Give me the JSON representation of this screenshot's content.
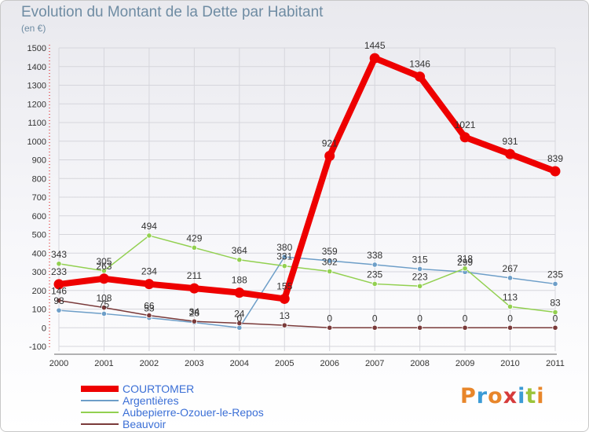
{
  "header": {
    "title": "Evolution du Montant de la Dette par Habitant",
    "subtitle": "(en €)"
  },
  "logo": {
    "text": "Proxiti",
    "colors": [
      "#e8862a",
      "#3b9bd6",
      "#e8862a",
      "#d63b3b",
      "#3b9bd6",
      "#9bc43b",
      "#e8862a"
    ]
  },
  "chart_data": {
    "type": "line",
    "title": "Evolution du Montant de la Dette par Habitant",
    "subtitle": "(en €)",
    "x": [
      "2000",
      "2001",
      "2002",
      "2003",
      "2004",
      "2005",
      "2006",
      "2007",
      "2008",
      "2009",
      "2010",
      "2011"
    ],
    "ylim": [
      -100,
      1500
    ],
    "yticks": [
      -100,
      0,
      100,
      200,
      300,
      400,
      500,
      600,
      700,
      800,
      900,
      1000,
      1100,
      1200,
      1300,
      1400,
      1500
    ],
    "grid": true,
    "legend_position": "bottom-left",
    "series": [
      {
        "name": "COURTOMER",
        "color": "#ee0000",
        "values": [
          233,
          263,
          234,
          211,
          188,
          155,
          921,
          1445,
          1346,
          1021,
          931,
          839
        ],
        "labels": [
          "233",
          "263",
          "234",
          "211",
          "188",
          "155",
          "921",
          "1445",
          "1346",
          "1021",
          "931",
          "839"
        ]
      },
      {
        "name": "Argentières",
        "color": "#6d9ec8",
        "values": [
          93,
          75,
          53,
          28,
          0,
          380,
          359,
          338,
          315,
          299,
          267,
          235
        ],
        "labels": [
          "93",
          "75",
          "53",
          "28",
          "0",
          "380",
          "359",
          "338",
          "315",
          "299",
          "267",
          "235"
        ]
      },
      {
        "name": "Aubepierre-Ozouer-le-Repos",
        "color": "#92d050",
        "values": [
          343,
          305,
          494,
          429,
          364,
          331,
          302,
          235,
          223,
          318,
          113,
          83
        ],
        "labels": [
          "343",
          "305",
          "494",
          "429",
          "364",
          "331",
          "302",
          "235",
          "223",
          "318",
          "113",
          "83"
        ]
      },
      {
        "name": "Beauvoir",
        "color": "#7a3a3a",
        "values": [
          146,
          108,
          66,
          34,
          24,
          13,
          0,
          0,
          0,
          0,
          0,
          0
        ],
        "labels": [
          "146",
          "108",
          "66",
          "34",
          "24",
          "13",
          "0",
          "0",
          "0",
          "0",
          "0",
          "0"
        ]
      }
    ]
  }
}
